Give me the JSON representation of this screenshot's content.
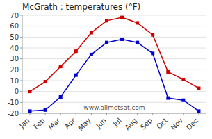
{
  "chart_data": {
    "type": "line",
    "title": "McGrath : temperatures (°F)",
    "categories": [
      "Jan",
      "Feb",
      "Mar",
      "Apr",
      "May",
      "Jun",
      "Jul",
      "Aug",
      "Sep",
      "Oct",
      "Nov",
      "Dec"
    ],
    "series": [
      {
        "color": "#cc0000",
        "marker": "square",
        "values": [
          0,
          9,
          23,
          37,
          54,
          65,
          68,
          63,
          52,
          18,
          11,
          3
        ]
      },
      {
        "color": "#0000cc",
        "marker": "square",
        "values": [
          -18,
          -17,
          -5,
          15,
          34,
          45,
          48,
          45,
          35,
          -6,
          -8,
          -18
        ]
      }
    ],
    "ylim": [
      -20,
      70
    ],
    "yticks": [
      -20,
      -10,
      0,
      10,
      20,
      30,
      40,
      50,
      60,
      70
    ],
    "grid": true,
    "annotations": [
      "www.allmetsat.com"
    ]
  }
}
